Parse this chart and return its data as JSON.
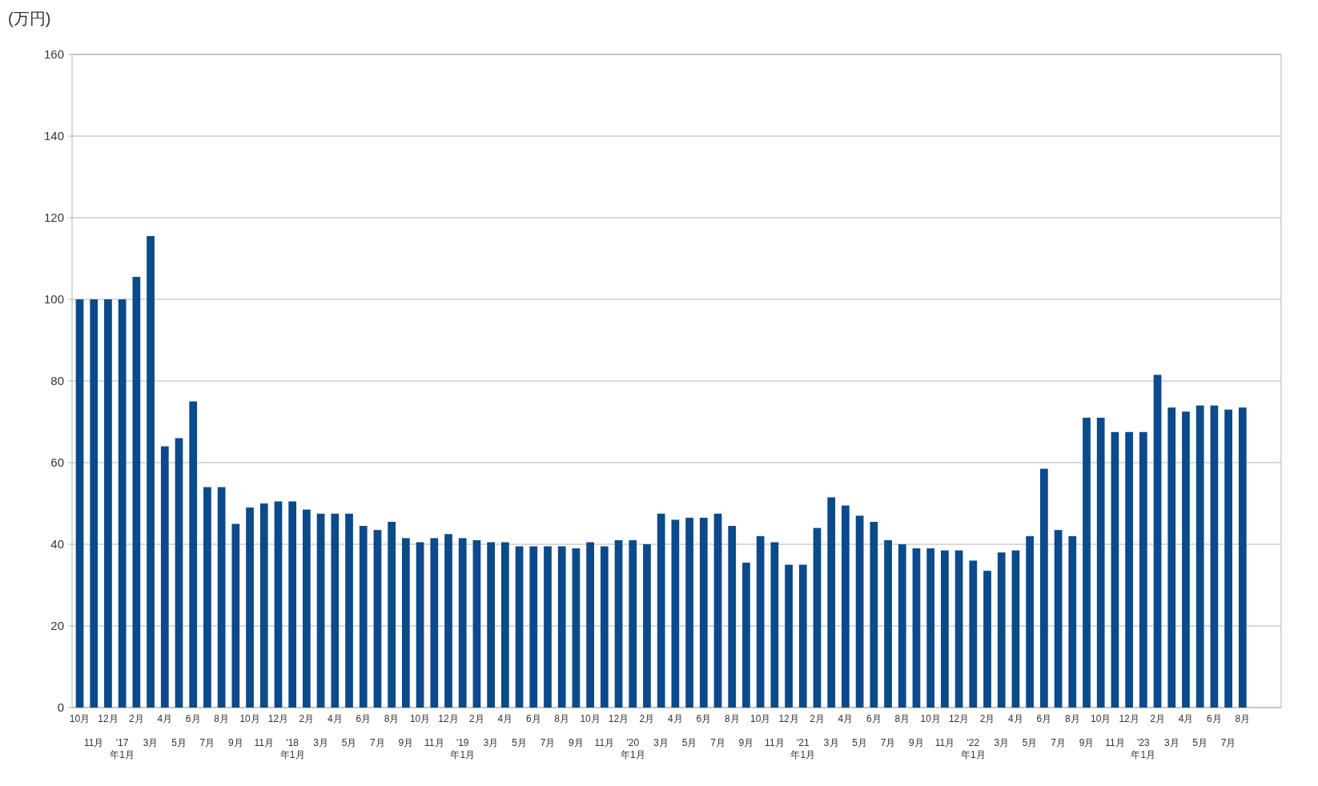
{
  "chart_data": {
    "type": "bar",
    "ylabel": "(万円)",
    "categories": [
      "10月",
      "11月",
      "12月",
      "'17年1月",
      "2月",
      "3月",
      "4月",
      "5月",
      "6月",
      "7月",
      "8月",
      "9月",
      "10月",
      "11月",
      "12月",
      "'18年1月",
      "2月",
      "3月",
      "4月",
      "5月",
      "6月",
      "7月",
      "8月",
      "9月",
      "10月",
      "11月",
      "12月",
      "'19年1月",
      "2月",
      "3月",
      "4月",
      "5月",
      "6月",
      "7月",
      "8月",
      "9月",
      "10月",
      "11月",
      "12月",
      "'20年1月",
      "2月",
      "3月",
      "4月",
      "5月",
      "6月",
      "7月",
      "8月",
      "9月",
      "10月",
      "11月",
      "12月",
      "'21年1月",
      "2月",
      "3月",
      "4月",
      "5月",
      "6月",
      "7月",
      "8月",
      "9月",
      "10月",
      "11月",
      "12月",
      "'22年1月",
      "2月",
      "3月",
      "4月",
      "5月",
      "6月",
      "7月",
      "8月",
      "9月",
      "10月",
      "11月",
      "12月",
      "'23年1月",
      "2月",
      "3月",
      "4月",
      "5月",
      "6月",
      "7月",
      "8月"
    ],
    "values": [
      100,
      100,
      100,
      100,
      105.5,
      115.5,
      64,
      66,
      75,
      54,
      54,
      45,
      49,
      50,
      50.5,
      50.5,
      48.5,
      47.5,
      47.5,
      47.5,
      44.5,
      43.5,
      45.5,
      41.5,
      40.5,
      41.5,
      42.5,
      41.5,
      41,
      40.5,
      40.5,
      39.5,
      39.5,
      39.5,
      39.5,
      39,
      40.5,
      39.5,
      41,
      41,
      40,
      47.5,
      46,
      46.5,
      46.5,
      47.5,
      44.5,
      35.5,
      42,
      40.5,
      35,
      35,
      44,
      51.5,
      49.5,
      47,
      45.5,
      41,
      40,
      39,
      39,
      38.5,
      38.5,
      36,
      33.5,
      38,
      38.5,
      42,
      58.5,
      43.5,
      42,
      71,
      71,
      67.5,
      67.5,
      67.5,
      81.5,
      73.5,
      72.5,
      74,
      74,
      73,
      73.5
    ],
    "color": "#0b4a8b",
    "ylim": [
      0,
      160
    ],
    "yticks": [
      0,
      20,
      40,
      60,
      80,
      100,
      120,
      140,
      160
    ],
    "grid": "y"
  }
}
